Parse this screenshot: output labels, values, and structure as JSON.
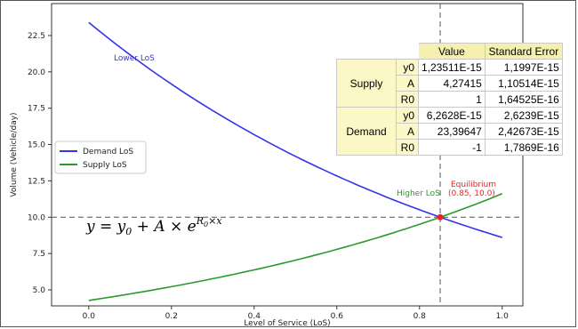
{
  "chart_data": {
    "type": "line",
    "xlabel": "Level of Service (LoS)",
    "ylabel": "Volume (Vehicle/day)",
    "xlim": [
      -0.09,
      1.05
    ],
    "ylim": [
      3.9,
      24.7
    ],
    "x_ticks": [
      "0.0",
      "0.2",
      "0.4",
      "0.6",
      "0.8",
      "1.0"
    ],
    "x_tick_values": [
      0,
      0.2,
      0.4,
      0.6,
      0.8,
      1.0
    ],
    "y_ticks": [
      "5.0",
      "7.5",
      "10.0",
      "12.5",
      "15.0",
      "17.5",
      "20.0",
      "22.5"
    ],
    "y_tick_values": [
      5,
      7.5,
      10,
      12.5,
      15,
      17.5,
      20,
      22.5
    ],
    "grid": false,
    "legend_position": "center-left",
    "series": [
      {
        "name": "Demand LoS",
        "color": "#3333ee",
        "model": {
          "y0": 0,
          "A": 23.39647,
          "R0": -1
        },
        "x": [
          0,
          0.1,
          0.2,
          0.3,
          0.4,
          0.5,
          0.6,
          0.7,
          0.8,
          0.9,
          1.0
        ],
        "y": [
          23.4,
          21.17,
          19.16,
          17.33,
          15.68,
          14.19,
          12.84,
          11.62,
          10.51,
          9.51,
          8.61
        ]
      },
      {
        "name": "Supply LoS",
        "color": "#2a9a2a",
        "model": {
          "y0": 0,
          "A": 4.27415,
          "R0": 1
        },
        "x": [
          0,
          0.1,
          0.2,
          0.3,
          0.4,
          0.5,
          0.6,
          0.7,
          0.8,
          0.9,
          1.0
        ],
        "y": [
          4.27,
          4.72,
          5.22,
          5.77,
          6.38,
          7.05,
          7.79,
          8.6,
          9.51,
          10.51,
          11.62
        ]
      }
    ],
    "reference_lines": {
      "vertical_x": 0.85,
      "horizontal_y": 10.0
    },
    "equilibrium": {
      "x": 0.85,
      "y": 10.0,
      "color": "#ee2222"
    },
    "annotations": {
      "lower": "Lower LoS",
      "higher": "Higher LoS",
      "equilibrium_title": "Equilibrium",
      "equilibrium_coords": "(0.85, 10.0)"
    }
  },
  "formula": {
    "lhs": "y = y",
    "sub0": "0",
    "mid": " + A × e",
    "exp_r": "R",
    "exp_sub": "0",
    "exp_rest": "×x"
  },
  "table": {
    "headers": [
      "Value",
      "Standard Error"
    ],
    "groups": [
      {
        "name": "Supply",
        "rows": [
          {
            "param": "y0",
            "value": "1,23511E-15",
            "error": "1,1997E-15"
          },
          {
            "param": "A",
            "value": "4,27415",
            "error": "1,10514E-15"
          },
          {
            "param": "R0",
            "value": "1",
            "error": "1,64525E-16"
          }
        ]
      },
      {
        "name": "Demand",
        "rows": [
          {
            "param": "y0",
            "value": "6,2628E-15",
            "error": "2,6239E-15"
          },
          {
            "param": "A",
            "value": "23,39647",
            "error": "2,42673E-15"
          },
          {
            "param": "R0",
            "value": "-1",
            "error": "1,7869E-16"
          }
        ]
      }
    ]
  }
}
